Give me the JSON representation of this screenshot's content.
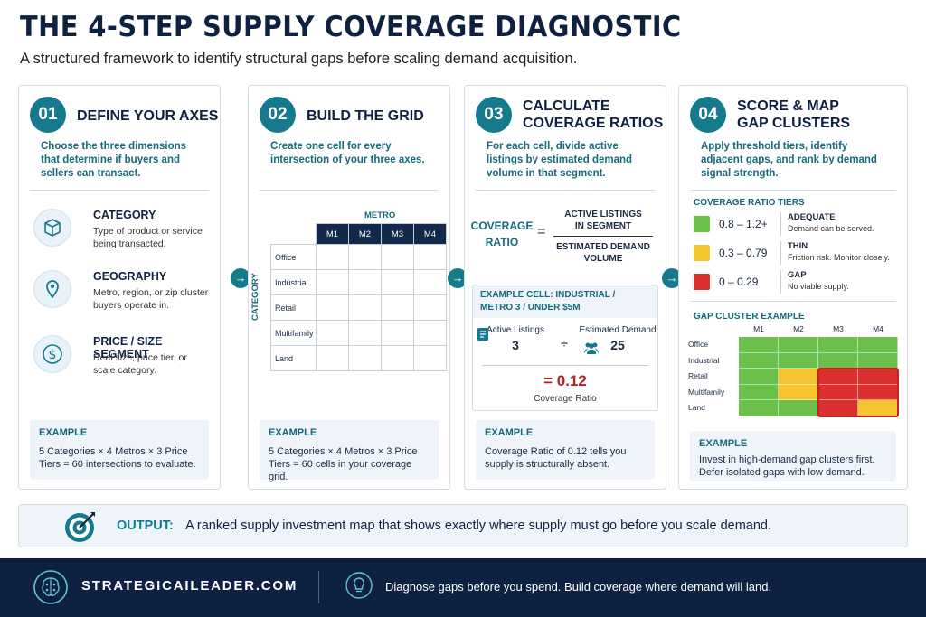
{
  "title": "THE 4-STEP SUPPLY COVERAGE DIAGNOSTIC",
  "subtitle": "A structured framework to identify structural gaps before scaling demand acquisition.",
  "colors": {
    "teal": "#157a8c",
    "navy": "#0f2140",
    "adequate": "#6ac04a",
    "thin": "#f5c430",
    "gap": "#dc2f2f"
  },
  "steps": [
    {
      "num": "01",
      "title": "DEFINE YOUR AXES",
      "desc": "Choose the three dimensions that determine if buyers and sellers can transact.",
      "dimensions": [
        {
          "icon": "box-icon",
          "title": "CATEGORY",
          "text": "Type of product or service being transacted."
        },
        {
          "icon": "location-pin-icon",
          "title": "GEOGRAPHY",
          "text": "Metro, region, or zip cluster buyers operate in."
        },
        {
          "icon": "dollar-icon",
          "title": "PRICE / SIZE SEGMENT",
          "text": "Deal size, price tier, or scale category."
        }
      ],
      "example_label": "EXAMPLE",
      "example": "5 Categories × 4 Metros × 3 Price Tiers = 60 intersections to evaluate."
    },
    {
      "num": "02",
      "title": "BUILD THE GRID",
      "desc": "Create one cell for every intersection of your three axes.",
      "grid": {
        "metro_label": "METRO",
        "category_label": "CATEGORY",
        "columns": [
          "M1",
          "M2",
          "M3",
          "M4"
        ],
        "rows": [
          "Office",
          "Industrial",
          "Retail",
          "Multifamily",
          "Land"
        ]
      },
      "example_label": "EXAMPLE",
      "example": "5 Categories × 4 Metros × 3 Price Tiers = 60 cells in your coverage grid."
    },
    {
      "num": "03",
      "title_line1": "CALCULATE",
      "title_line2": "COVERAGE RATIOS",
      "desc": "For each cell, divide active listings by estimated demand volume in that segment.",
      "formula": {
        "left_1": "COVERAGE",
        "left_2": "RATIO",
        "eq": "=",
        "num_1": "ACTIVE LISTINGS",
        "num_2": "IN SEGMENT",
        "den_1": "ESTIMATED DEMAND",
        "den_2": "VOLUME"
      },
      "example_cell": {
        "title": "EXAMPLE CELL: INDUSTRIAL / METRO 3 / UNDER $5M",
        "listings_label": "Active Listings",
        "listings_value": "3",
        "divide": "÷",
        "demand_label": "Estimated Demand",
        "demand_value": "25",
        "result": "= 0.12",
        "result_label": "Coverage Ratio"
      },
      "example_label": "EXAMPLE",
      "example": "Coverage Ratio of 0.12 tells you supply is structurally absent."
    },
    {
      "num": "04",
      "title_line1": "SCORE & MAP",
      "title_line2": "GAP CLUSTERS",
      "desc": "Apply threshold tiers, identify adjacent gaps, and rank by demand signal strength.",
      "tiers_label": "COVERAGE RATIO TIERS",
      "tiers": [
        {
          "range": "0.8 – 1.2+",
          "name": "ADEQUATE",
          "desc": "Demand can be served.",
          "color": "#6ac04a"
        },
        {
          "range": "0.3 – 0.79",
          "name": "THIN",
          "desc": "Friction risk. Monitor closely.",
          "color": "#f5c430"
        },
        {
          "range": "0 – 0.29",
          "name": "GAP",
          "desc": "No viable supply.",
          "color": "#dc2f2f"
        }
      ],
      "cluster_label": "GAP CLUSTER EXAMPLE",
      "cluster": {
        "columns": [
          "M1",
          "M2",
          "M3",
          "M4"
        ],
        "rows": [
          "Office",
          "Industrial",
          "Retail",
          "Multifamily",
          "Land"
        ],
        "cells": [
          [
            "adequate",
            "adequate",
            "adequate",
            "adequate"
          ],
          [
            "adequate",
            "adequate",
            "adequate",
            "adequate"
          ],
          [
            "adequate",
            "thin",
            "gap",
            "gap"
          ],
          [
            "adequate",
            "thin",
            "gap",
            "gap"
          ],
          [
            "adequate",
            "adequate",
            "gap",
            "thin"
          ]
        ]
      },
      "example_label": "EXAMPLE",
      "example": "Invest in high-demand gap clusters first. Defer isolated gaps with low demand."
    }
  ],
  "output": {
    "label": "OUTPUT:",
    "text": "A ranked supply investment map that shows exactly where supply must go before you scale demand."
  },
  "footer": {
    "site": "STRATEGICAILEADER.COM",
    "tagline": "Diagnose gaps before you spend. Build coverage where demand will land."
  }
}
